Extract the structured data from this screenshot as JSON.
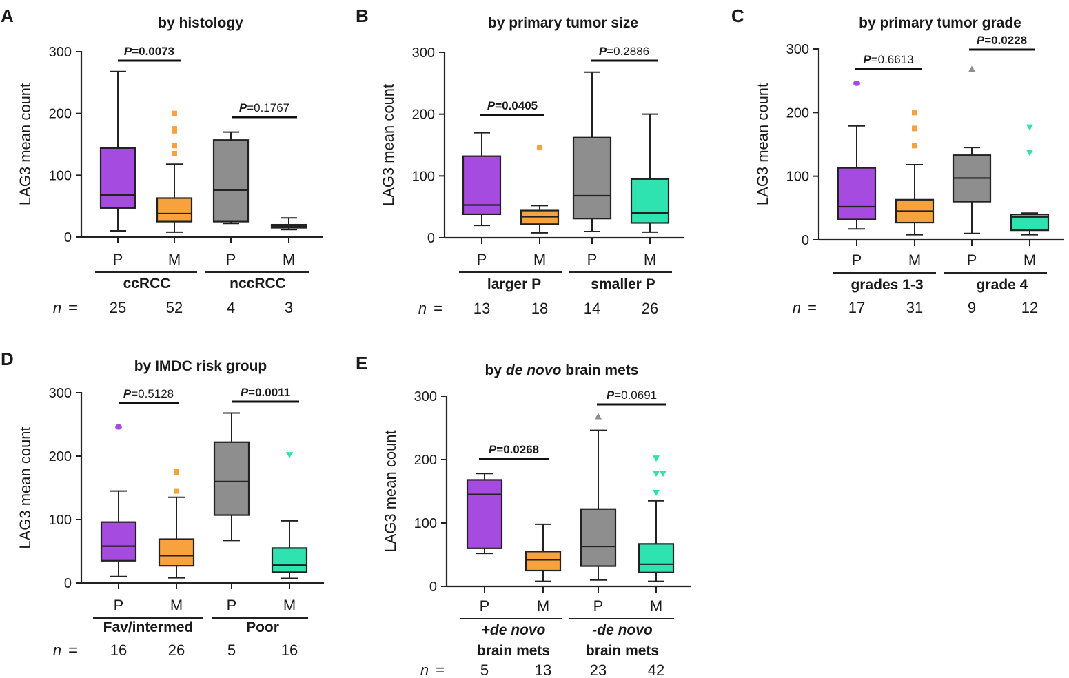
{
  "chart_data": [
    {
      "panel": "A",
      "type": "box",
      "title": "by histology",
      "title_pre": "",
      "title_ital": "",
      "title_post": "",
      "ylabel": "LAG3 mean count",
      "ylim": [
        0,
        300
      ],
      "yticks": [
        "0",
        "100",
        "200",
        "300"
      ],
      "categories": [
        "P",
        "M",
        "P",
        "M"
      ],
      "n_label": "n",
      "n_eq": "=",
      "n": [
        "25",
        "52",
        "4",
        "3"
      ],
      "groups": [
        {
          "label": "ccRCC",
          "ital": ""
        },
        {
          "label": "nccRCC",
          "ital": ""
        }
      ],
      "boxes": [
        {
          "color": "#A64BE0",
          "whisker_low": 10,
          "q1": 47,
          "median": 68,
          "q3": 144,
          "whisker_high": 268,
          "outliers": [],
          "marker": "circle"
        },
        {
          "color": "#F7A23C",
          "whisker_low": 8,
          "q1": 25,
          "median": 38,
          "q3": 63,
          "whisker_high": 118,
          "outliers": [
            200,
            175,
            172,
            148,
            135
          ],
          "marker": "square"
        },
        {
          "color": "#8E8E8E",
          "whisker_low": 22,
          "q1": 25,
          "median": 76,
          "q3": 157,
          "whisker_high": 170,
          "outliers": [],
          "marker": "triangle"
        },
        {
          "color": "#2FE3B0",
          "whisker_low": 12,
          "q1": 15,
          "median": 18,
          "q3": 20,
          "whisker_high": 31,
          "outliers": [],
          "marker": "tri-down"
        }
      ],
      "pvalues": [
        {
          "pre": "P",
          "val": "=0.0073",
          "bold": true
        },
        {
          "pre": "P",
          "val": "=0.1767",
          "bold": false
        }
      ]
    },
    {
      "panel": "B",
      "type": "box",
      "title": "by primary tumor size",
      "title_pre": "",
      "title_ital": "",
      "title_post": "",
      "ylabel": "LAG3 mean count",
      "ylim": [
        0,
        300
      ],
      "yticks": [
        "0",
        "100",
        "200",
        "300"
      ],
      "categories": [
        "P",
        "M",
        "P",
        "M"
      ],
      "n_label": "n",
      "n_eq": "=",
      "n": [
        "13",
        "18",
        "14",
        "26"
      ],
      "groups": [
        {
          "label": "larger P",
          "ital": ""
        },
        {
          "label": "smaller P",
          "ital": ""
        }
      ],
      "boxes": [
        {
          "color": "#A64BE0",
          "whisker_low": 20,
          "q1": 38,
          "median": 53,
          "q3": 132,
          "whisker_high": 170,
          "outliers": [],
          "marker": "circle"
        },
        {
          "color": "#F7A23C",
          "whisker_low": 8,
          "q1": 22,
          "median": 34,
          "q3": 44,
          "whisker_high": 52,
          "outliers": [
            146
          ],
          "marker": "square"
        },
        {
          "color": "#8E8E8E",
          "whisker_low": 10,
          "q1": 31,
          "median": 68,
          "q3": 162,
          "whisker_high": 268,
          "outliers": [],
          "marker": "triangle"
        },
        {
          "color": "#2FE3B0",
          "whisker_low": 9,
          "q1": 24,
          "median": 40,
          "q3": 95,
          "whisker_high": 200,
          "outliers": [],
          "marker": "tri-down"
        }
      ],
      "pvalues": [
        {
          "pre": "P",
          "val": "=0.0405",
          "bold": true
        },
        {
          "pre": "P",
          "val": "=0.2886",
          "bold": false
        }
      ]
    },
    {
      "panel": "C",
      "type": "box",
      "title": "by primary tumor grade",
      "title_pre": "",
      "title_ital": "",
      "title_post": "",
      "ylabel": "LAG3 mean count",
      "ylim": [
        0,
        300
      ],
      "yticks": [
        "0",
        "100",
        "200",
        "300"
      ],
      "categories": [
        "P",
        "M",
        "P",
        "M"
      ],
      "n_label": "n",
      "n_eq": "=",
      "n": [
        "17",
        "31",
        "9",
        "12"
      ],
      "groups": [
        {
          "label": "grades 1-3",
          "ital": ""
        },
        {
          "label": "grade 4",
          "ital": ""
        }
      ],
      "boxes": [
        {
          "color": "#A64BE0",
          "whisker_low": 17,
          "q1": 32,
          "median": 52,
          "q3": 113,
          "whisker_high": 179,
          "outliers": [
            246
          ],
          "marker": "circle"
        },
        {
          "color": "#F7A23C",
          "whisker_low": 8,
          "q1": 27,
          "median": 45,
          "q3": 63,
          "whisker_high": 118,
          "outliers": [
            200,
            175,
            148
          ],
          "marker": "square"
        },
        {
          "color": "#8E8E8E",
          "whisker_low": 10,
          "q1": 60,
          "median": 97,
          "q3": 133,
          "whisker_high": 145,
          "outliers": [
            268
          ],
          "marker": "triangle"
        },
        {
          "color": "#2FE3B0",
          "whisker_low": 8,
          "q1": 15,
          "median": 36,
          "q3": 40,
          "whisker_high": 42,
          "outliers": [
            177,
            137
          ],
          "marker": "tri-down"
        }
      ],
      "pvalues": [
        {
          "pre": "P",
          "val": "=0.6613",
          "bold": false
        },
        {
          "pre": "P",
          "val": "=0.0228",
          "bold": true
        }
      ]
    },
    {
      "panel": "D",
      "type": "box",
      "title": "by IMDC risk group",
      "title_pre": "",
      "title_ital": "",
      "title_post": "",
      "ylabel": "LAG3 mean count",
      "ylim": [
        0,
        300
      ],
      "yticks": [
        "0",
        "100",
        "200",
        "300"
      ],
      "categories": [
        "P",
        "M",
        "P",
        "M"
      ],
      "n_label": "n",
      "n_eq": "=",
      "n": [
        "16",
        "26",
        "5",
        "16"
      ],
      "groups": [
        {
          "label": "Fav/intermed",
          "ital": ""
        },
        {
          "label": "Poor",
          "ital": ""
        }
      ],
      "boxes": [
        {
          "color": "#A64BE0",
          "whisker_low": 10,
          "q1": 35,
          "median": 58,
          "q3": 96,
          "whisker_high": 145,
          "outliers": [
            246
          ],
          "marker": "circle"
        },
        {
          "color": "#F7A23C",
          "whisker_low": 8,
          "q1": 27,
          "median": 43,
          "q3": 69,
          "whisker_high": 135,
          "outliers": [
            175,
            145
          ],
          "marker": "square"
        },
        {
          "color": "#8E8E8E",
          "whisker_low": 67,
          "q1": 107,
          "median": 160,
          "q3": 222,
          "whisker_high": 268,
          "outliers": [],
          "marker": "triangle"
        },
        {
          "color": "#2FE3B0",
          "whisker_low": 7,
          "q1": 17,
          "median": 28,
          "q3": 55,
          "whisker_high": 98,
          "outliers": [
            202
          ],
          "marker": "tri-down"
        }
      ],
      "pvalues": [
        {
          "pre": "P",
          "val": "=0.5128",
          "bold": false
        },
        {
          "pre": "P",
          "val": "=0.0011",
          "bold": true
        }
      ]
    },
    {
      "panel": "E",
      "type": "box",
      "title": "",
      "title_pre": "by ",
      "title_ital": "de novo",
      "title_post": " brain mets",
      "ylabel": "LAG3 mean count",
      "ylim": [
        0,
        300
      ],
      "yticks": [
        "0",
        "100",
        "200",
        "300"
      ],
      "categories": [
        "P",
        "M",
        "P",
        "M"
      ],
      "n_label": "n",
      "n_eq": "=",
      "n": [
        "5",
        "13",
        "23",
        "42"
      ],
      "groups": [
        {
          "label": "brain mets",
          "ital": "+de novo"
        },
        {
          "label": "brain mets",
          "ital": "-de novo"
        }
      ],
      "boxes": [
        {
          "color": "#A64BE0",
          "whisker_low": 52,
          "q1": 60,
          "median": 145,
          "q3": 168,
          "whisker_high": 178,
          "outliers": [],
          "marker": "circle"
        },
        {
          "color": "#F7A23C",
          "whisker_low": 8,
          "q1": 25,
          "median": 42,
          "q3": 55,
          "whisker_high": 98,
          "outliers": [],
          "marker": "square"
        },
        {
          "color": "#8E8E8E",
          "whisker_low": 10,
          "q1": 32,
          "median": 63,
          "q3": 122,
          "whisker_high": 246,
          "outliers": [
            268
          ],
          "marker": "triangle"
        },
        {
          "color": "#2FE3B0",
          "whisker_low": 8,
          "q1": 22,
          "median": 35,
          "q3": 67,
          "whisker_high": 135,
          "outliers": [
            202,
            178,
            178,
            148
          ],
          "marker": "tri-down"
        }
      ],
      "pvalues": [
        {
          "pre": "P",
          "val": "=0.0268",
          "bold": true
        },
        {
          "pre": "P",
          "val": "=0.0691",
          "bold": false
        }
      ]
    }
  ]
}
